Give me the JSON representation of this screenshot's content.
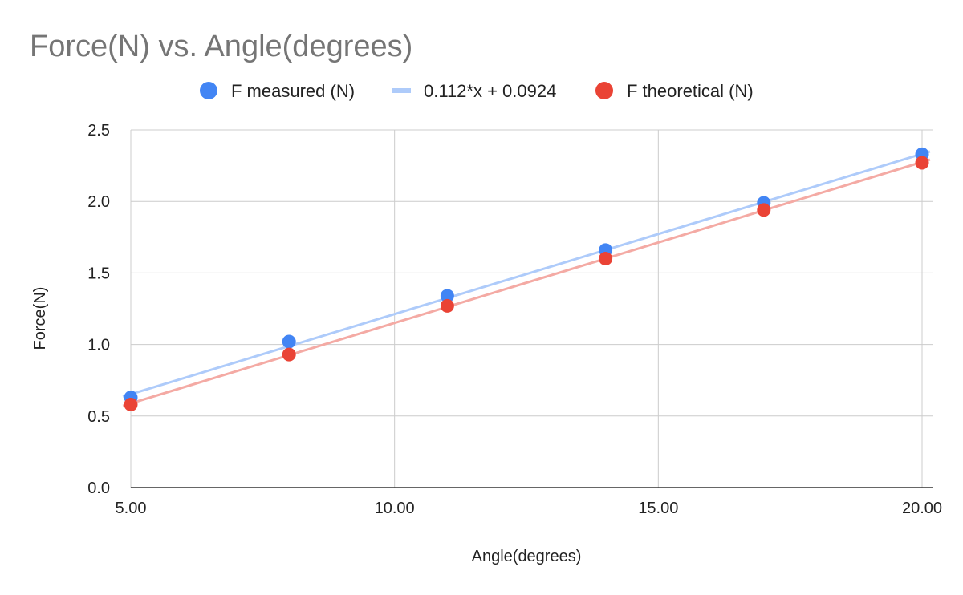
{
  "chart_data": {
    "type": "scatter",
    "title": "Force(N) vs. Angle(degrees)",
    "xlabel": "Angle(degrees)",
    "ylabel": "Force(N)",
    "xlim": [
      5.0,
      20.0
    ],
    "ylim": [
      0.0,
      2.5
    ],
    "x_ticks": [
      "5.00",
      "10.00",
      "15.00",
      "20.00"
    ],
    "y_ticks": [
      "0.0",
      "0.5",
      "1.0",
      "1.5",
      "2.0",
      "2.5"
    ],
    "grid": true,
    "legend_position": "top",
    "series": [
      {
        "name": "F measured (N)",
        "kind": "points",
        "color": "#4285f4",
        "x": [
          5,
          8,
          11,
          14,
          17,
          20
        ],
        "y": [
          0.63,
          1.02,
          1.34,
          1.66,
          1.99,
          2.33
        ]
      },
      {
        "name": "0.112*x + 0.0924",
        "kind": "trendline",
        "color": "#aecbfa",
        "slope": 0.112,
        "intercept": 0.0924
      },
      {
        "name": "F theoretical (N)",
        "kind": "points",
        "color": "#ea4335",
        "trendline_color": "#f4aaa4",
        "x": [
          5,
          8,
          11,
          14,
          17,
          20
        ],
        "y": [
          0.58,
          0.93,
          1.27,
          1.6,
          1.94,
          2.27
        ]
      }
    ]
  }
}
